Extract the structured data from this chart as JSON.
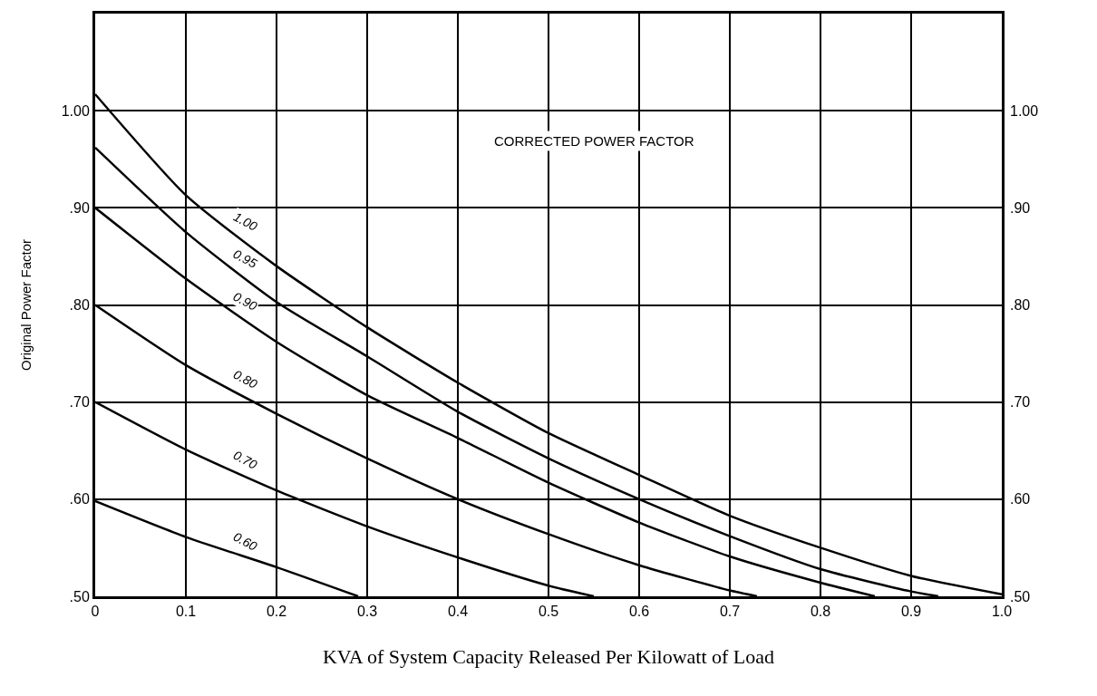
{
  "chart_data": {
    "type": "line",
    "xlabel": "KVA of System Capacity Released Per Kilowatt of Load",
    "ylabel": "Original Power Factor",
    "annotations": [
      "CORRECTED POWER FACTOR"
    ],
    "x": [
      0,
      0.1,
      0.2,
      0.3,
      0.4,
      0.5,
      0.6,
      0.7,
      0.8,
      0.9,
      1.0
    ],
    "series": [
      {
        "name": "1.00",
        "color": "#000000",
        "values": [
          1.017,
          0.913,
          0.84,
          0.777,
          0.72,
          0.668,
          0.625,
          0.583,
          0.55,
          0.521,
          0.502
        ]
      },
      {
        "name": "0.95",
        "color": "#000000",
        "x": [
          0,
          0.1,
          0.2,
          0.3,
          0.4,
          0.5,
          0.6,
          0.7,
          0.8,
          0.9,
          0.93
        ],
        "values": [
          0.962,
          0.875,
          0.803,
          0.747,
          0.69,
          0.642,
          0.6,
          0.562,
          0.528,
          0.505,
          0.5
        ]
      },
      {
        "name": "0.90",
        "color": "#000000",
        "x": [
          0,
          0.1,
          0.2,
          0.3,
          0.4,
          0.5,
          0.6,
          0.7,
          0.8,
          0.86
        ],
        "values": [
          0.9,
          0.827,
          0.762,
          0.707,
          0.663,
          0.617,
          0.576,
          0.541,
          0.514,
          0.5
        ]
      },
      {
        "name": "0.80",
        "color": "#000000",
        "x": [
          0,
          0.1,
          0.2,
          0.3,
          0.4,
          0.5,
          0.6,
          0.7,
          0.73
        ],
        "values": [
          0.8,
          0.738,
          0.688,
          0.642,
          0.6,
          0.564,
          0.532,
          0.506,
          0.5
        ]
      },
      {
        "name": "0.70",
        "color": "#000000",
        "x": [
          0,
          0.1,
          0.2,
          0.3,
          0.4,
          0.5,
          0.55
        ],
        "values": [
          0.7,
          0.651,
          0.609,
          0.572,
          0.54,
          0.511,
          0.5
        ]
      },
      {
        "name": "0.60",
        "color": "#000000",
        "x": [
          0,
          0.1,
          0.2,
          0.29
        ],
        "values": [
          0.598,
          0.561,
          0.53,
          0.5
        ]
      }
    ],
    "xlim": [
      0,
      1.0
    ],
    "xticks": [
      0,
      {
        "value": 0.1,
        "label": "0.1"
      },
      {
        "value": 0.2,
        "label": "0.2"
      },
      {
        "value": 0.3,
        "label": "0.3"
      },
      {
        "value": 0.4,
        "label": "0.4"
      },
      {
        "value": 0.5,
        "label": "0.5"
      },
      {
        "value": 0.6,
        "label": "0.6"
      },
      {
        "value": 0.7,
        "label": "0.7"
      },
      {
        "value": 0.8,
        "label": "0.8"
      },
      {
        "value": 0.9,
        "label": "0.9"
      },
      {
        "value": 1.0,
        "label": "1.0"
      }
    ],
    "ylim": [
      0.5,
      1.1
    ],
    "yticks": [
      {
        "value": 0.5,
        "label": ".50"
      },
      {
        "value": 0.6,
        "label": ".60"
      },
      {
        "value": 0.7,
        "label": ".70"
      },
      {
        "value": 0.8,
        "label": ".80"
      },
      {
        "value": 0.9,
        "label": ".90"
      },
      {
        "value": 1.0,
        "label": "1.00"
      }
    ],
    "y2lim": [
      0.5,
      1.1
    ],
    "y2ticks": [
      {
        "value": 0.5,
        "label": ".50"
      },
      {
        "value": 0.6,
        "label": ".60"
      },
      {
        "value": 0.7,
        "label": ".70"
      },
      {
        "value": 0.8,
        "label": ".80"
      },
      {
        "value": 0.9,
        "label": ".90"
      },
      {
        "value": 1.0,
        "label": "1.00"
      }
    ],
    "grid": true,
    "legend": false,
    "marker": "none",
    "line_style": "solid"
  }
}
